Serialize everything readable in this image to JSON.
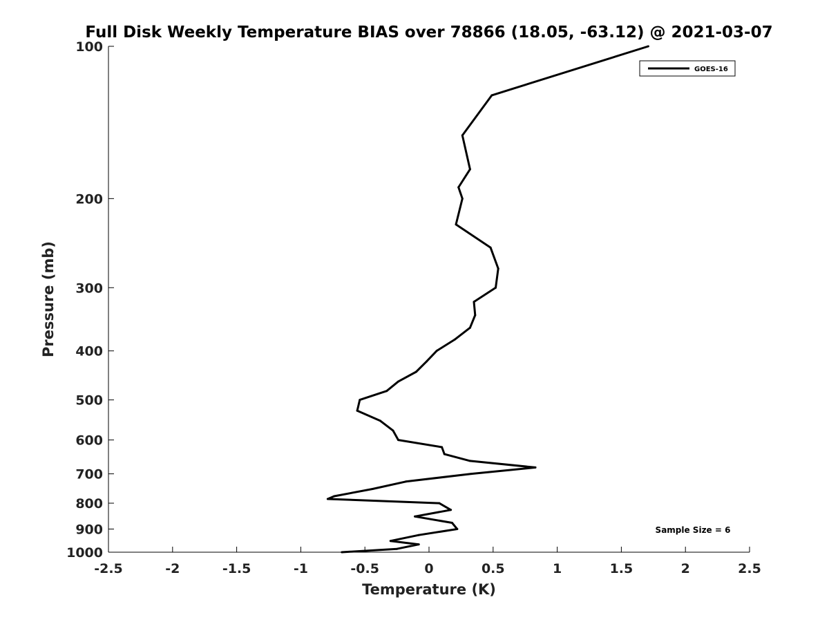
{
  "chart_data": {
    "type": "line",
    "title": "Full Disk Weekly Temperature BIAS over 78866 (18.05, -63.12) @ 2021-03-07",
    "xlabel": "Temperature (K)",
    "ylabel": "Pressure (mb)",
    "xlim": [
      -2.5,
      2.5
    ],
    "ylim": [
      1000,
      100
    ],
    "y_scale": "log",
    "y_reversed": true,
    "x_ticks": [
      -2.5,
      -2,
      -1.5,
      -1,
      -0.5,
      0,
      0.5,
      1,
      1.5,
      2,
      2.5
    ],
    "x_tick_labels": [
      "-2.5",
      "-2",
      "-1.5",
      "-1",
      "-0.5",
      "0",
      "0.5",
      "1",
      "1.5",
      "2",
      "2.5"
    ],
    "y_ticks": [
      100,
      200,
      300,
      400,
      500,
      600,
      700,
      800,
      900,
      1000
    ],
    "y_tick_labels": [
      "100",
      "200",
      "300",
      "400",
      "500",
      "600",
      "700",
      "800",
      "900",
      "1000"
    ],
    "grid": false,
    "legend_position": "top-right",
    "annotation": "Sample Size = 6",
    "series": [
      {
        "name": "GOES-16",
        "color": "#000000",
        "points": [
          {
            "x": 1.71,
            "y": 100
          },
          {
            "x": 0.49,
            "y": 125
          },
          {
            "x": 0.26,
            "y": 150
          },
          {
            "x": 0.32,
            "y": 175
          },
          {
            "x": 0.23,
            "y": 190
          },
          {
            "x": 0.26,
            "y": 200
          },
          {
            "x": 0.21,
            "y": 225
          },
          {
            "x": 0.48,
            "y": 250
          },
          {
            "x": 0.54,
            "y": 275
          },
          {
            "x": 0.52,
            "y": 300
          },
          {
            "x": 0.35,
            "y": 320
          },
          {
            "x": 0.36,
            "y": 340
          },
          {
            "x": 0.32,
            "y": 360
          },
          {
            "x": 0.2,
            "y": 380
          },
          {
            "x": 0.06,
            "y": 400
          },
          {
            "x": -0.02,
            "y": 420
          },
          {
            "x": -0.1,
            "y": 440
          },
          {
            "x": -0.24,
            "y": 460
          },
          {
            "x": -0.33,
            "y": 480
          },
          {
            "x": -0.54,
            "y": 500
          },
          {
            "x": -0.56,
            "y": 525
          },
          {
            "x": -0.38,
            "y": 550
          },
          {
            "x": -0.28,
            "y": 575
          },
          {
            "x": -0.24,
            "y": 600
          },
          {
            "x": 0.1,
            "y": 620
          },
          {
            "x": 0.12,
            "y": 640
          },
          {
            "x": 0.32,
            "y": 660
          },
          {
            "x": 0.83,
            "y": 680
          },
          {
            "x": 0.33,
            "y": 700
          },
          {
            "x": -0.18,
            "y": 725
          },
          {
            "x": -0.44,
            "y": 750
          },
          {
            "x": -0.74,
            "y": 775
          },
          {
            "x": -0.79,
            "y": 785
          },
          {
            "x": 0.08,
            "y": 800
          },
          {
            "x": 0.17,
            "y": 825
          },
          {
            "x": -0.11,
            "y": 850
          },
          {
            "x": 0.18,
            "y": 875
          },
          {
            "x": 0.22,
            "y": 900
          },
          {
            "x": -0.08,
            "y": 925
          },
          {
            "x": -0.3,
            "y": 950
          },
          {
            "x": -0.08,
            "y": 965
          },
          {
            "x": -0.25,
            "y": 985
          },
          {
            "x": -0.68,
            "y": 1000
          }
        ]
      }
    ]
  }
}
